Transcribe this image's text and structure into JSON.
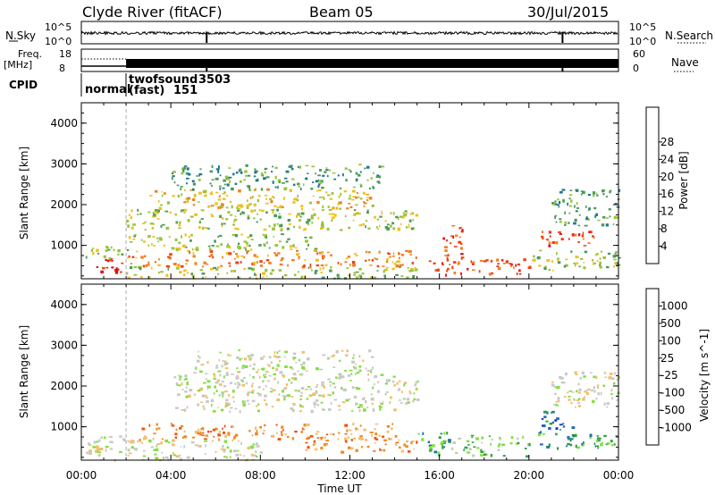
{
  "header": {
    "station": "Clyde River (fitACF)",
    "beam": "Beam 05",
    "date": "30/Jul/2015"
  },
  "top_panels": {
    "nsky_label": "N.Sky",
    "nsky_ticks": [
      "10^5",
      "10^0"
    ],
    "nsearch_label": "N.Search",
    "nsearch_ticks": [
      "10^5",
      "10^0"
    ],
    "freq_label_1": "Freq.",
    "freq_label_2": "[MHz]",
    "freq_ticks": [
      "18",
      "8"
    ],
    "nave_label": "Nave",
    "nave_ticks": [
      "60",
      "0"
    ],
    "cpid_label": "CPID",
    "cpid_segments": [
      {
        "name": "normal",
        "id": ""
      },
      {
        "name": "twofsound",
        "id": "3503"
      },
      {
        "name": "(fast)",
        "id": "151"
      }
    ]
  },
  "x_axis": {
    "label": "Time UT",
    "ticks": [
      "00:00",
      "04:00",
      "08:00",
      "12:00",
      "16:00",
      "20:00",
      "00:00"
    ]
  },
  "colors": {
    "power_scale": [
      "#1010e0",
      "#2050c0",
      "#1e7a8c",
      "#4a9a5a",
      "#9ac43a",
      "#f0c020",
      "#f08020",
      "#f04010",
      "#e01010"
    ],
    "velocity_scale": [
      "#e01010",
      "#f05010",
      "#f08a20",
      "#f0c070",
      "#c8c8c8",
      "#80e040",
      "#30a040",
      "#2070b0",
      "#1030c0"
    ]
  },
  "chart_data": [
    {
      "type": "heatmap",
      "title": "",
      "xlabel": "Time UT",
      "ylabel": "Slant Range [km]",
      "xlim": [
        0,
        24
      ],
      "ylim": [
        180,
        4500
      ],
      "yticks": [
        "1000",
        "2000",
        "3000",
        "4000"
      ],
      "colorbar_label": "Power [dB]",
      "colorbar_ticks": [
        "4",
        "8",
        "12",
        "16",
        "20",
        "24",
        "28"
      ],
      "grid": false,
      "legend": "right",
      "regions": [
        {
          "t": [
            0.5,
            2.0
          ],
          "r": [
            300,
            700
          ],
          "level": 28
        },
        {
          "t": [
            0.0,
            2.0
          ],
          "r": [
            700,
            1000
          ],
          "level": 14
        },
        {
          "t": [
            2.0,
            15.0
          ],
          "r": [
            200,
            500
          ],
          "level": 16
        },
        {
          "t": [
            2.0,
            15.0
          ],
          "r": [
            500,
            900
          ],
          "level": 22
        },
        {
          "t": [
            2.0,
            10.5
          ],
          "r": [
            900,
            1300
          ],
          "level": 14
        },
        {
          "t": [
            2.0,
            15.0
          ],
          "r": [
            1400,
            1900
          ],
          "level": 16
        },
        {
          "t": [
            3.0,
            13.0
          ],
          "r": [
            1900,
            2400
          ],
          "level": 18
        },
        {
          "t": [
            4.0,
            13.5
          ],
          "r": [
            2400,
            3000
          ],
          "level": 12
        },
        {
          "t": [
            15.5,
            20.0
          ],
          "r": [
            300,
            700
          ],
          "level": 26
        },
        {
          "t": [
            16.0,
            17.0
          ],
          "r": [
            700,
            1500
          ],
          "level": 24
        },
        {
          "t": [
            20.0,
            24.0
          ],
          "r": [
            400,
            900
          ],
          "level": 16
        },
        {
          "t": [
            20.5,
            23.0
          ],
          "r": [
            1000,
            1400
          ],
          "level": 26
        },
        {
          "t": [
            21.0,
            24.0
          ],
          "r": [
            1500,
            2400
          ],
          "level": 12
        }
      ]
    },
    {
      "type": "heatmap",
      "title": "",
      "xlabel": "Time UT",
      "ylabel": "Slant Range [km]",
      "xlim": [
        0,
        24
      ],
      "ylim": [
        180,
        4500
      ],
      "yticks": [
        "1000",
        "2000",
        "3000",
        "4000"
      ],
      "colorbar_label": "Velocity [m s^-1]",
      "colorbar_ticks": [
        "1000",
        "500",
        "100",
        "25",
        "-25",
        "-100",
        "-500",
        "-1000"
      ],
      "grid": false,
      "legend": "right",
      "regions": [
        {
          "t": [
            0.2,
            2.0
          ],
          "r": [
            200,
            800
          ],
          "level": 0
        },
        {
          "t": [
            2.0,
            8.0
          ],
          "r": [
            200,
            700
          ],
          "level": 0
        },
        {
          "t": [
            2.5,
            14.0
          ],
          "r": [
            700,
            1100
          ],
          "level": -300
        },
        {
          "t": [
            4.0,
            15.0
          ],
          "r": [
            1400,
            2300
          ],
          "level": 0
        },
        {
          "t": [
            5.0,
            13.0
          ],
          "r": [
            2300,
            2900
          ],
          "level": 0
        },
        {
          "t": [
            10.0,
            15.0
          ],
          "r": [
            400,
            800
          ],
          "level": -300
        },
        {
          "t": [
            15.0,
            16.5
          ],
          "r": [
            300,
            900
          ],
          "level": 300
        },
        {
          "t": [
            16.5,
            20.0
          ],
          "r": [
            300,
            800
          ],
          "level": 60
        },
        {
          "t": [
            20.0,
            24.0
          ],
          "r": [
            500,
            900
          ],
          "level": 200
        },
        {
          "t": [
            20.5,
            22.0
          ],
          "r": [
            900,
            1400
          ],
          "level": 600
        },
        {
          "t": [
            21.0,
            24.0
          ],
          "r": [
            1500,
            2400
          ],
          "level": 0
        }
      ]
    }
  ]
}
